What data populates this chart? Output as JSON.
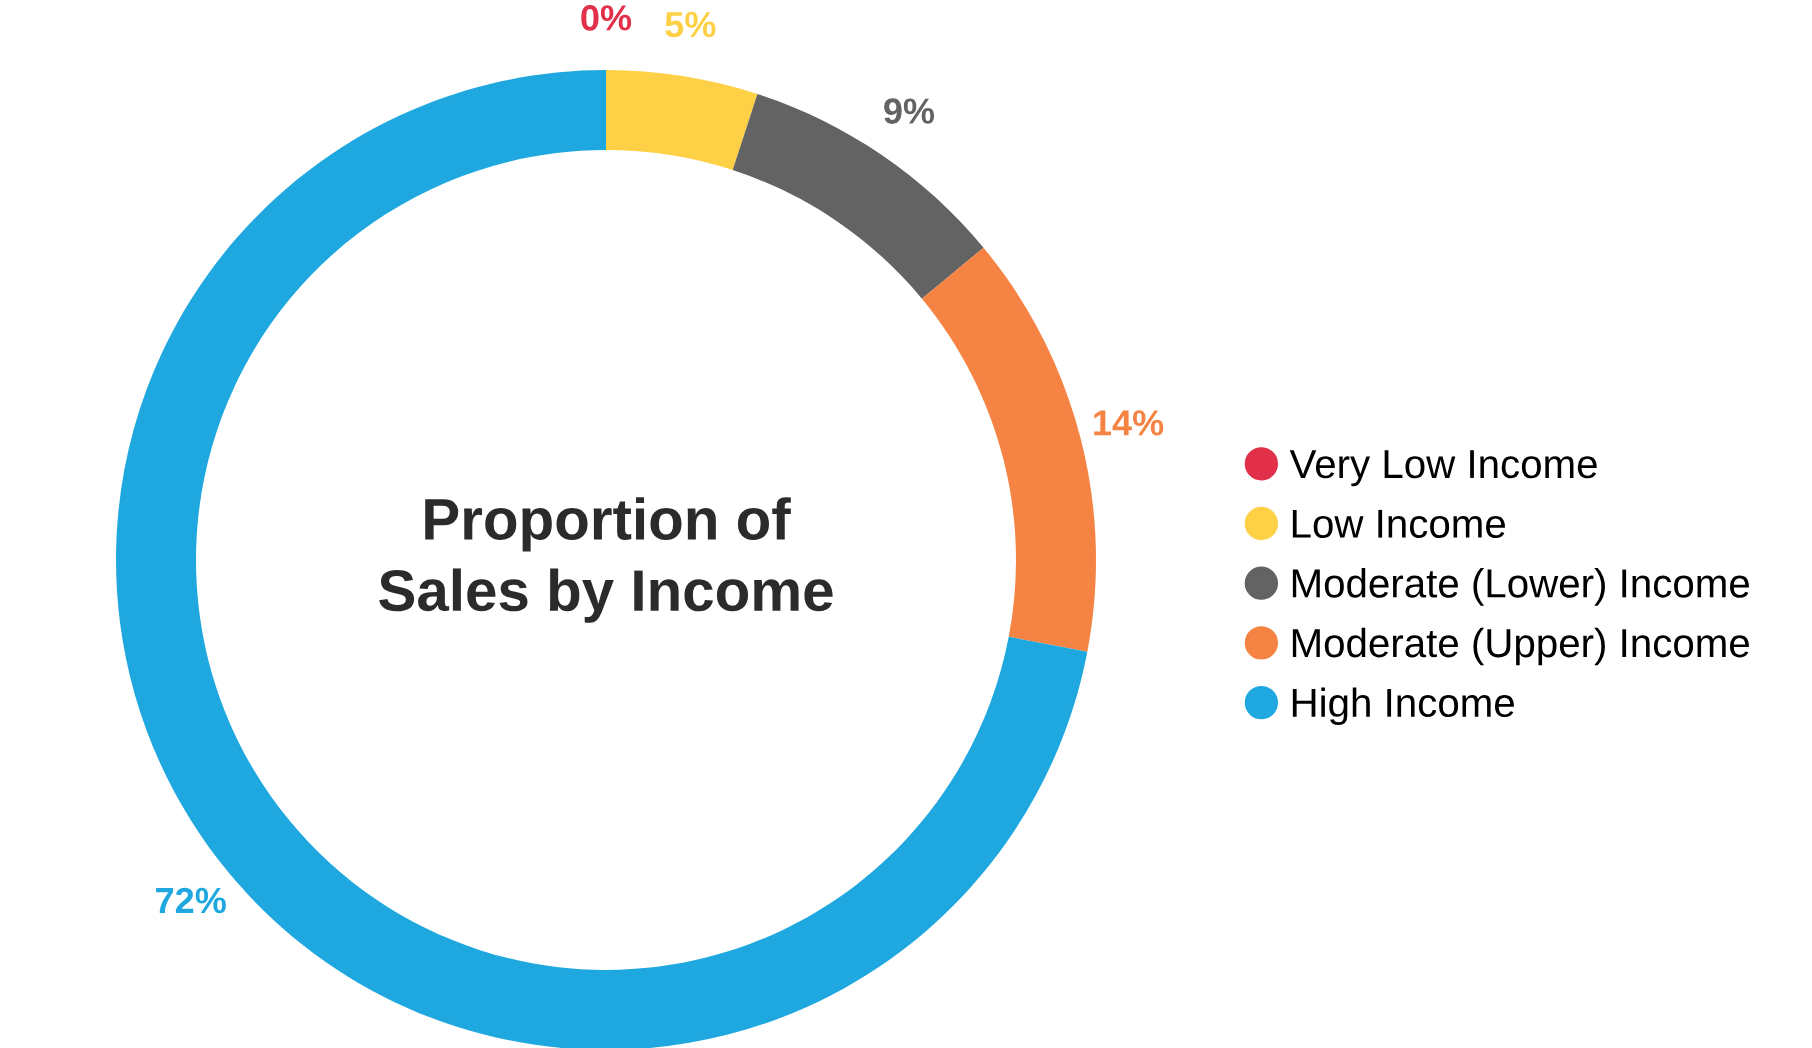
{
  "chart_data": {
    "type": "donut",
    "title": "Proportion of\nSales by Income",
    "categories": [
      "Very Low Income",
      "Low Income",
      "Moderate (Lower) Income",
      "Moderate (Upper) Income",
      "High Income"
    ],
    "values": [
      0,
      5,
      9,
      14,
      72
    ],
    "colors": [
      "#e2304a",
      "#fdd045",
      "#636363",
      "#f58444",
      "#1fa8e0"
    ],
    "value_labels": [
      "0%",
      "5%",
      "9%",
      "14%",
      "72%"
    ],
    "legend": "right"
  }
}
